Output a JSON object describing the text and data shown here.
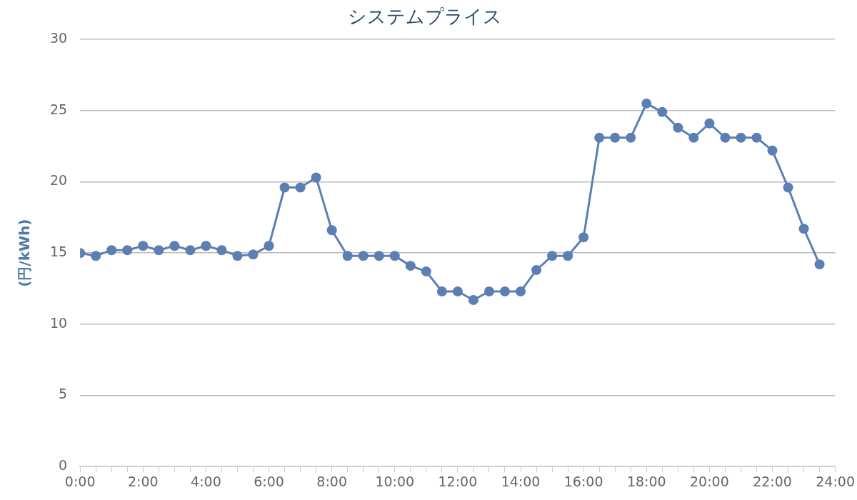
{
  "chart_data": {
    "type": "line",
    "title": "システムプライス",
    "ylabel": "(円/kWh)",
    "x": [
      0,
      0.5,
      1,
      1.5,
      2,
      2.5,
      3,
      3.5,
      4,
      4.5,
      5,
      5.5,
      6,
      6.5,
      7,
      7.5,
      8,
      8.5,
      9,
      9.5,
      10,
      10.5,
      11,
      11.5,
      12,
      12.5,
      13,
      13.5,
      14,
      14.5,
      15,
      15.5,
      16,
      16.5,
      17,
      17.5,
      18,
      18.5,
      19,
      19.5,
      20,
      20.5,
      21,
      21.5,
      22,
      22.5,
      23,
      23.5
    ],
    "series": [
      {
        "color": "#5b7fb2",
        "values": [
          15.0,
          14.8,
          15.2,
          15.2,
          15.5,
          15.2,
          15.5,
          15.2,
          15.5,
          15.2,
          14.8,
          14.9,
          15.5,
          19.6,
          19.6,
          20.3,
          16.6,
          14.8,
          14.8,
          14.8,
          14.8,
          14.1,
          13.7,
          12.3,
          12.3,
          11.7,
          12.3,
          12.3,
          12.3,
          13.8,
          14.8,
          14.8,
          16.1,
          23.1,
          23.1,
          23.1,
          25.5,
          24.9,
          23.8,
          23.1,
          24.1,
          23.1,
          23.1,
          23.1,
          22.2,
          19.6,
          16.7,
          14.2
        ]
      }
    ],
    "xlim": [
      0,
      24
    ],
    "xticks": [
      {
        "value": 0,
        "label": "0:00"
      },
      {
        "value": 0.5,
        "label": null
      },
      {
        "value": 1,
        "label": null
      },
      {
        "value": 1.5,
        "label": null
      },
      {
        "value": 2,
        "label": "2:00"
      },
      {
        "value": 2.5,
        "label": null
      },
      {
        "value": 3,
        "label": null
      },
      {
        "value": 3.5,
        "label": null
      },
      {
        "value": 4,
        "label": "4:00"
      },
      {
        "value": 4.5,
        "label": null
      },
      {
        "value": 5,
        "label": null
      },
      {
        "value": 5.5,
        "label": null
      },
      {
        "value": 6,
        "label": "6:00"
      },
      {
        "value": 6.5,
        "label": null
      },
      {
        "value": 7,
        "label": null
      },
      {
        "value": 7.5,
        "label": null
      },
      {
        "value": 8,
        "label": "8:00"
      },
      {
        "value": 8.5,
        "label": null
      },
      {
        "value": 9,
        "label": null
      },
      {
        "value": 9.5,
        "label": null
      },
      {
        "value": 10,
        "label": "10:00"
      },
      {
        "value": 10.5,
        "label": null
      },
      {
        "value": 11,
        "label": null
      },
      {
        "value": 11.5,
        "label": null
      },
      {
        "value": 12,
        "label": "12:00"
      },
      {
        "value": 12.5,
        "label": null
      },
      {
        "value": 13,
        "label": null
      },
      {
        "value": 13.5,
        "label": null
      },
      {
        "value": 14,
        "label": "14:00"
      },
      {
        "value": 14.5,
        "label": null
      },
      {
        "value": 15,
        "label": null
      },
      {
        "value": 15.5,
        "label": null
      },
      {
        "value": 16,
        "label": "16:00"
      },
      {
        "value": 16.5,
        "label": null
      },
      {
        "value": 17,
        "label": null
      },
      {
        "value": 17.5,
        "label": null
      },
      {
        "value": 18,
        "label": "18:00"
      },
      {
        "value": 18.5,
        "label": null
      },
      {
        "value": 19,
        "label": null
      },
      {
        "value": 19.5,
        "label": null
      },
      {
        "value": 20,
        "label": "20:00"
      },
      {
        "value": 20.5,
        "label": null
      },
      {
        "value": 21,
        "label": null
      },
      {
        "value": 21.5,
        "label": null
      },
      {
        "value": 22,
        "label": "22:00"
      },
      {
        "value": 22.5,
        "label": null
      },
      {
        "value": 23,
        "label": null
      },
      {
        "value": 23.5,
        "label": null
      },
      {
        "value": 24,
        "label": "24:00"
      }
    ],
    "ylim": [
      0,
      30
    ],
    "yticks": [
      0,
      5,
      10,
      15,
      20,
      25,
      30
    ],
    "grid": "y",
    "legend": false,
    "marker": "circle",
    "line_style": "solid"
  }
}
